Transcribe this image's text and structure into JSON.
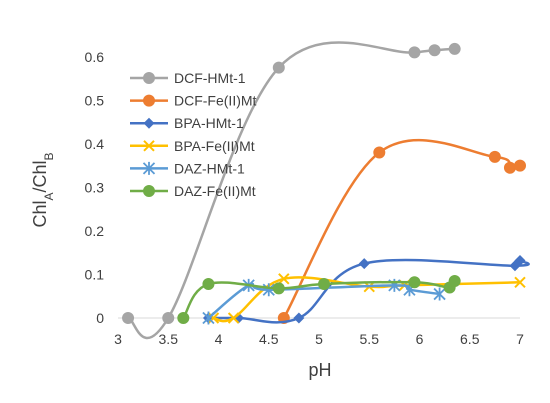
{
  "chart_data": {
    "type": "line",
    "xlabel": "pH",
    "ylabel": "ChlA/ChlB",
    "ylabel_parts": {
      "base1": "Chl",
      "sub1": "A",
      "sep": "/Chl",
      "sub2": "B"
    },
    "xlim": [
      3,
      7
    ],
    "ylim": [
      0,
      0.65
    ],
    "x_ticks": [
      3,
      3.5,
      4,
      4.5,
      5,
      5.5,
      6,
      6.5,
      7
    ],
    "x_tick_labels": [
      "3",
      "3.5",
      "4",
      "4.5",
      "5",
      "5.5",
      "6",
      "6.5",
      "7"
    ],
    "y_ticks": [
      0,
      0.1,
      0.2,
      0.3,
      0.4,
      0.5,
      0.6
    ],
    "y_tick_labels": [
      "0",
      "0.1",
      "0.2",
      "0.3",
      "0.4",
      "0.5",
      "0.6"
    ],
    "grid": false,
    "legend_position": "top-left",
    "smooth": true,
    "series": [
      {
        "name": "DCF-HMt-1",
        "color": "#a5a5a5",
        "marker": "circle",
        "points": [
          [
            3.1,
            0
          ],
          [
            3.5,
            0
          ],
          [
            4.6,
            0.575
          ],
          [
            5.95,
            0.61
          ],
          [
            6.15,
            0.615
          ],
          [
            6.35,
            0.618
          ]
        ]
      },
      {
        "name": "DCF-Fe(II)Mt",
        "color": "#ed7d31",
        "marker": "circle",
        "points": [
          [
            4.65,
            0
          ],
          [
            5.6,
            0.38
          ],
          [
            6.75,
            0.37
          ],
          [
            6.9,
            0.345
          ],
          [
            7,
            0.35
          ]
        ]
      },
      {
        "name": "BPA-HMt-1",
        "color": "#4472c4",
        "marker": "diamond",
        "points": [
          [
            3.9,
            0
          ],
          [
            4.2,
            0
          ],
          [
            4.8,
            0
          ],
          [
            5.45,
            0.125
          ],
          [
            6.95,
            0.12
          ],
          [
            7,
            0.132
          ]
        ]
      },
      {
        "name": "BPA-Fe(II)Mt",
        "color": "#ffc000",
        "marker": "x",
        "points": [
          [
            3.95,
            0
          ],
          [
            4.15,
            0
          ],
          [
            4.65,
            0.09
          ],
          [
            5.5,
            0.072
          ],
          [
            5.85,
            0.075
          ],
          [
            7,
            0.082
          ]
        ]
      },
      {
        "name": "DAZ-HMt-1",
        "color": "#5b9bd5",
        "marker": "star",
        "points": [
          [
            3.9,
            0
          ],
          [
            4.3,
            0.075
          ],
          [
            4.5,
            0.065
          ],
          [
            5.75,
            0.075
          ],
          [
            5.9,
            0.065
          ],
          [
            6.2,
            0.055
          ]
        ]
      },
      {
        "name": "DAZ-Fe(II)Mt",
        "color": "#70ad47",
        "marker": "circle",
        "points": [
          [
            3.65,
            0
          ],
          [
            3.9,
            0.078
          ],
          [
            4.6,
            0.068
          ],
          [
            5.05,
            0.078
          ],
          [
            5.95,
            0.082
          ],
          [
            6.3,
            0.07
          ],
          [
            6.35,
            0.085
          ]
        ]
      }
    ]
  }
}
